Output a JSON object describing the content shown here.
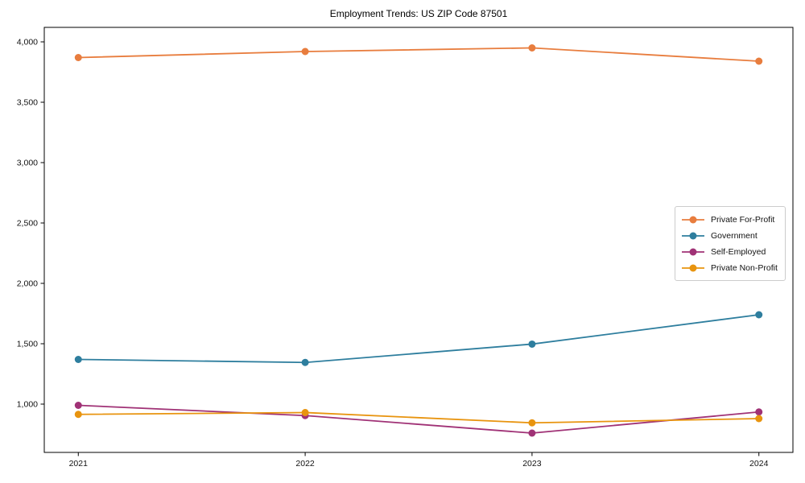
{
  "chart_data": {
    "type": "line",
    "title": "Employment Trends: US ZIP Code 87501",
    "xlabel": "",
    "ylabel": "",
    "x": [
      2021,
      2022,
      2023,
      2024
    ],
    "xticklabels": [
      "2021",
      "2022",
      "2023",
      "2024"
    ],
    "yticks": [
      1000,
      1500,
      2000,
      2500,
      3000,
      3500,
      4000
    ],
    "yticklabels": [
      "1,000",
      "1,500",
      "2,000",
      "2,500",
      "3,000",
      "3,500",
      "4,000"
    ],
    "xlim": [
      2020.85,
      2024.15
    ],
    "ylim": [
      600,
      4120
    ],
    "grid": false,
    "legend_position": "center-right",
    "series": [
      {
        "name": "Private For-Profit",
        "color": "#e87d3e",
        "values": [
          3870,
          3920,
          3950,
          3840
        ]
      },
      {
        "name": "Government",
        "color": "#2e7e9e",
        "values": [
          1370,
          1345,
          1497,
          1740
        ]
      },
      {
        "name": "Self-Employed",
        "color": "#a03276",
        "values": [
          990,
          905,
          760,
          935
        ]
      },
      {
        "name": "Private Non-Profit",
        "color": "#e8940f",
        "values": [
          915,
          930,
          845,
          880
        ]
      }
    ],
    "axis_color": "#000000",
    "background_color": "#ffffff"
  }
}
